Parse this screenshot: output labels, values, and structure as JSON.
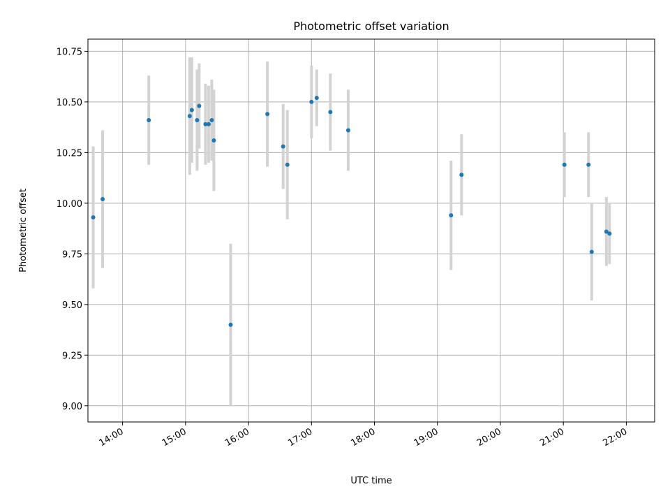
{
  "chart_data": {
    "type": "scatter",
    "title": "Photometric offset variation",
    "xlabel": "UTC time",
    "ylabel": "Photometric offset",
    "x_ticks": [
      "14:00",
      "15:00",
      "16:00",
      "17:00",
      "18:00",
      "19:00",
      "20:00",
      "21:00",
      "22:00"
    ],
    "y_ticks": [
      "9.00",
      "9.25",
      "9.50",
      "9.75",
      "10.00",
      "10.25",
      "10.50",
      "10.75"
    ],
    "xlim": [
      "13:27",
      "22:27"
    ],
    "ylim": [
      8.92,
      10.81
    ],
    "grid": true,
    "colors": {
      "points": "#1f77b4",
      "errorbars": "#d3d3d3",
      "grid": "#b0b0b0"
    },
    "points": [
      {
        "x": "13:32",
        "y": 9.93,
        "yerr": 0.35
      },
      {
        "x": "13:41",
        "y": 10.02,
        "yerr": 0.34
      },
      {
        "x": "14:25",
        "y": 10.41,
        "yerr": 0.22
      },
      {
        "x": "15:04",
        "y": 10.43,
        "yerr": 0.29
      },
      {
        "x": "15:06",
        "y": 10.46,
        "yerr": 0.26
      },
      {
        "x": "15:11",
        "y": 10.41,
        "yerr": 0.25
      },
      {
        "x": "15:13",
        "y": 10.48,
        "yerr": 0.21
      },
      {
        "x": "15:19",
        "y": 10.39,
        "yerr": 0.2
      },
      {
        "x": "15:22",
        "y": 10.39,
        "yerr": 0.19
      },
      {
        "x": "15:25",
        "y": 10.41,
        "yerr": 0.2
      },
      {
        "x": "15:27",
        "y": 10.31,
        "yerr": 0.25
      },
      {
        "x": "15:43",
        "y": 9.4,
        "yerr": 0.4
      },
      {
        "x": "16:18",
        "y": 10.44,
        "yerr": 0.26
      },
      {
        "x": "16:33",
        "y": 10.28,
        "yerr": 0.21
      },
      {
        "x": "16:37",
        "y": 10.19,
        "yerr": 0.27
      },
      {
        "x": "17:00",
        "y": 10.5,
        "yerr": 0.18
      },
      {
        "x": "17:05",
        "y": 10.52,
        "yerr": 0.14
      },
      {
        "x": "17:18",
        "y": 10.45,
        "yerr": 0.19
      },
      {
        "x": "17:35",
        "y": 10.36,
        "yerr": 0.2
      },
      {
        "x": "19:13",
        "y": 9.94,
        "yerr": 0.27
      },
      {
        "x": "19:23",
        "y": 10.14,
        "yerr": 0.2
      },
      {
        "x": "21:01",
        "y": 10.19,
        "yerr": 0.16
      },
      {
        "x": "21:24",
        "y": 10.19,
        "yerr": 0.16
      },
      {
        "x": "21:27",
        "y": 9.76,
        "yerr": 0.24
      },
      {
        "x": "21:41",
        "y": 9.86,
        "yerr": 0.17
      },
      {
        "x": "21:44",
        "y": 9.85,
        "yerr": 0.15
      }
    ]
  }
}
